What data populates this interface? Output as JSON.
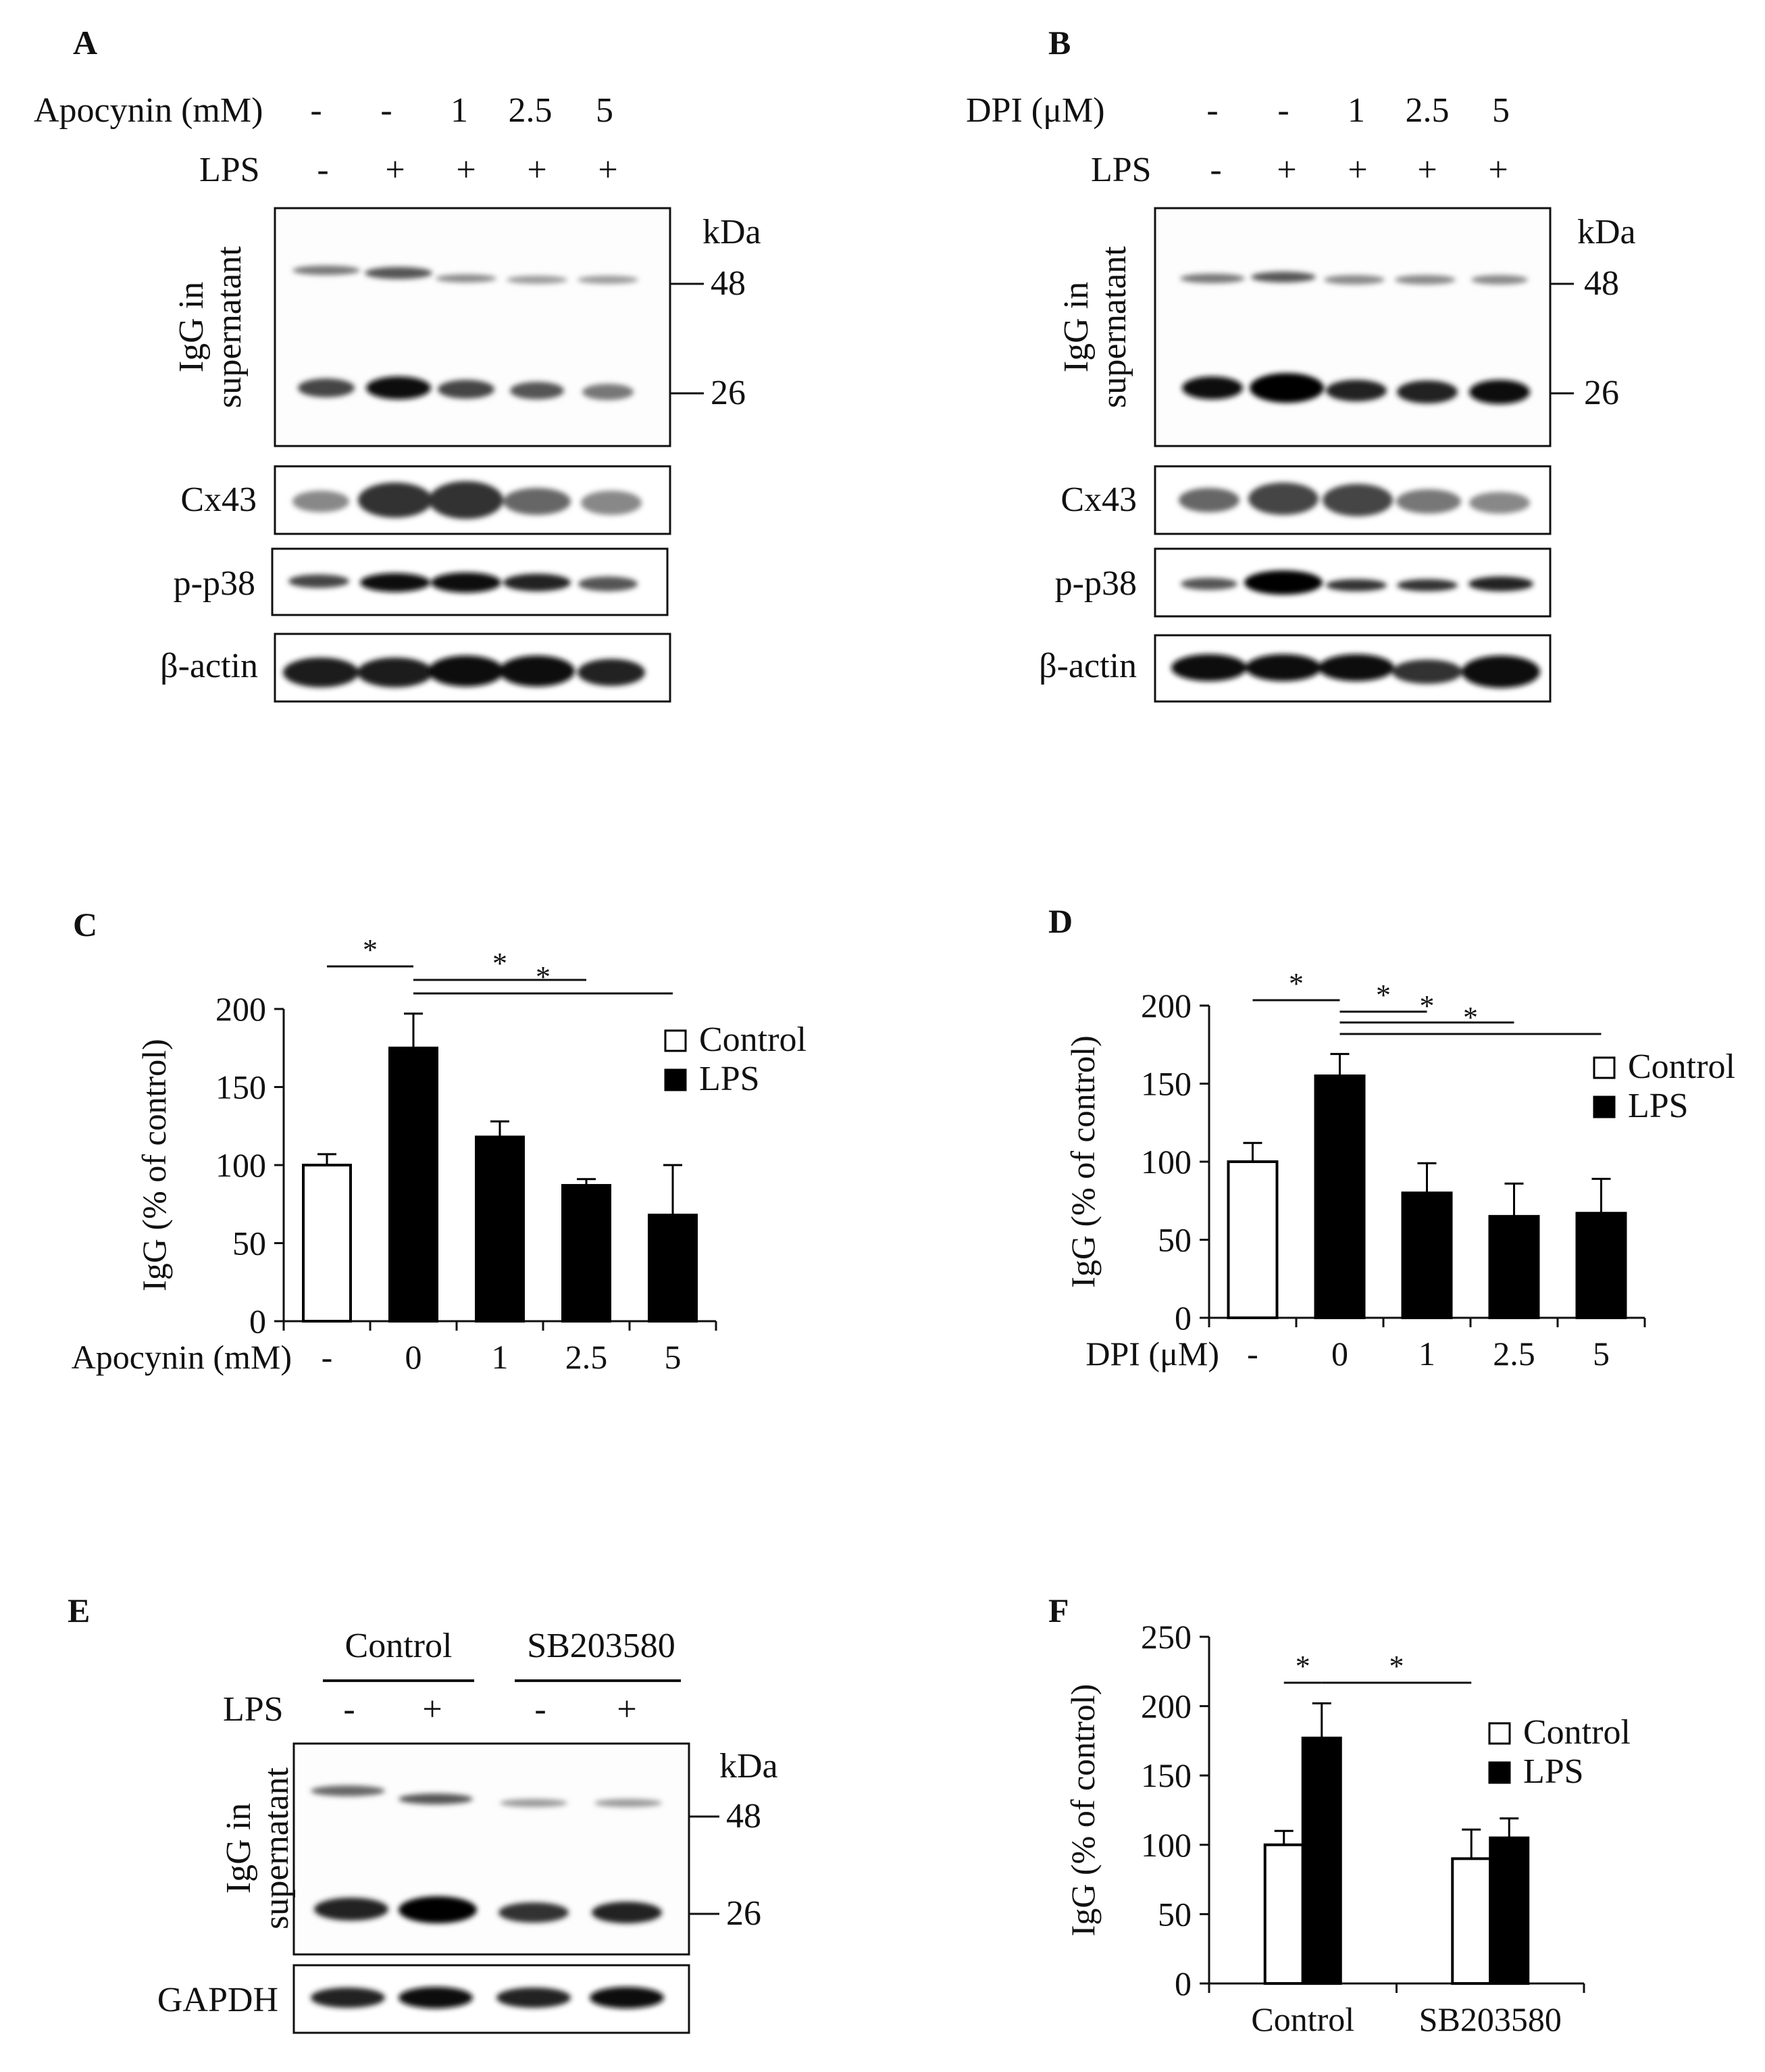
{
  "panels": {
    "A": {
      "letter": "A",
      "treatment_label": "Apocynin (mM)",
      "treatment_values": [
        "-",
        "-",
        "1",
        "2.5",
        "5"
      ],
      "lps_label": "LPS",
      "lps_values": [
        "-",
        "+",
        "+",
        "+",
        "+"
      ],
      "blot_main_label": "IgG in supernatant",
      "kda_label": "kDa",
      "markers": [
        "48",
        "26"
      ],
      "other_blots": [
        "Cx43",
        "p-p38",
        "β-actin"
      ]
    },
    "B": {
      "letter": "B",
      "treatment_label": "DPI (μM)",
      "treatment_values": [
        "-",
        "-",
        "1",
        "2.5",
        "5"
      ],
      "lps_label": "LPS",
      "lps_values": [
        "-",
        "+",
        "+",
        "+",
        "+"
      ],
      "blot_main_label": "IgG in supernatant",
      "kda_label": "kDa",
      "markers": [
        "48",
        "26"
      ],
      "other_blots": [
        "Cx43",
        "p-p38",
        "β-actin"
      ]
    },
    "C": {
      "letter": "C"
    },
    "D": {
      "letter": "D"
    },
    "E": {
      "letter": "E",
      "group_labels": [
        "Control",
        "SB203580"
      ],
      "lps_label": "LPS",
      "lps_values": [
        "-",
        "+",
        "-",
        "+"
      ],
      "blot_main_label": "IgG in supernatant",
      "kda_label": "kDa",
      "markers": [
        "48",
        "26"
      ],
      "other_blots": [
        "GAPDH"
      ]
    },
    "F": {
      "letter": "F"
    }
  },
  "chart_data": [
    {
      "panel": "C",
      "type": "bar",
      "xlabel": "Apocynin (mM)",
      "categories": [
        "-",
        "0",
        "1",
        "2.5",
        "5"
      ],
      "ylabel": "IgG (% of control)",
      "ylim": [
        0,
        200
      ],
      "yticks": [
        0,
        50,
        100,
        150,
        200
      ],
      "legend": [
        "Control",
        "LPS"
      ],
      "legend_position": "top-right",
      "bars": [
        {
          "category": "-",
          "series": "Control",
          "value": 100,
          "error": 7
        },
        {
          "category": "0",
          "series": "LPS",
          "value": 175,
          "error": 22
        },
        {
          "category": "1",
          "series": "LPS",
          "value": 118,
          "error": 10
        },
        {
          "category": "2.5",
          "series": "LPS",
          "value": 87,
          "error": 4
        },
        {
          "category": "5",
          "series": "LPS",
          "value": 68,
          "error": 32
        }
      ],
      "significance": [
        {
          "from": "-",
          "to": "0",
          "label": "*"
        },
        {
          "from": "0",
          "to": "2.5",
          "label": "*"
        },
        {
          "from": "0",
          "to": "5",
          "label": "*"
        }
      ]
    },
    {
      "panel": "D",
      "type": "bar",
      "xlabel": "DPI (μM)",
      "categories": [
        "-",
        "0",
        "1",
        "2.5",
        "5"
      ],
      "ylabel": "IgG (% of control)",
      "ylim": [
        0,
        200
      ],
      "yticks": [
        0,
        50,
        100,
        150,
        200
      ],
      "legend": [
        "Control",
        "LPS"
      ],
      "legend_position": "top-right",
      "bars": [
        {
          "category": "-",
          "series": "Control",
          "value": 100,
          "error": 12
        },
        {
          "category": "0",
          "series": "LPS",
          "value": 155,
          "error": 14
        },
        {
          "category": "1",
          "series": "LPS",
          "value": 80,
          "error": 19
        },
        {
          "category": "2.5",
          "series": "LPS",
          "value": 65,
          "error": 21
        },
        {
          "category": "5",
          "series": "LPS",
          "value": 67,
          "error": 22
        }
      ],
      "significance": [
        {
          "from": "-",
          "to": "0",
          "label": "*"
        },
        {
          "from": "0",
          "to": "1",
          "label": "*"
        },
        {
          "from": "0",
          "to": "2.5",
          "label": "*"
        },
        {
          "from": "0",
          "to": "5",
          "label": "*"
        }
      ]
    },
    {
      "panel": "F",
      "type": "bar",
      "categories": [
        "Control",
        "SB203580"
      ],
      "ylabel": "IgG (% of control)",
      "ylim": [
        0,
        250
      ],
      "yticks": [
        0,
        50,
        100,
        150,
        200,
        250
      ],
      "legend": [
        "Control",
        "LPS"
      ],
      "legend_position": "top-right",
      "series": [
        {
          "name": "Control",
          "values": [
            100,
            90
          ],
          "errors": [
            10,
            21
          ]
        },
        {
          "name": "LPS",
          "values": [
            177,
            105
          ],
          "errors": [
            25,
            14
          ]
        }
      ],
      "significance": [
        {
          "from": "Control:Control",
          "to": "Control:LPS",
          "label": "*"
        },
        {
          "from": "Control:LPS",
          "to": "SB203580:Control",
          "label": "*"
        }
      ]
    }
  ]
}
